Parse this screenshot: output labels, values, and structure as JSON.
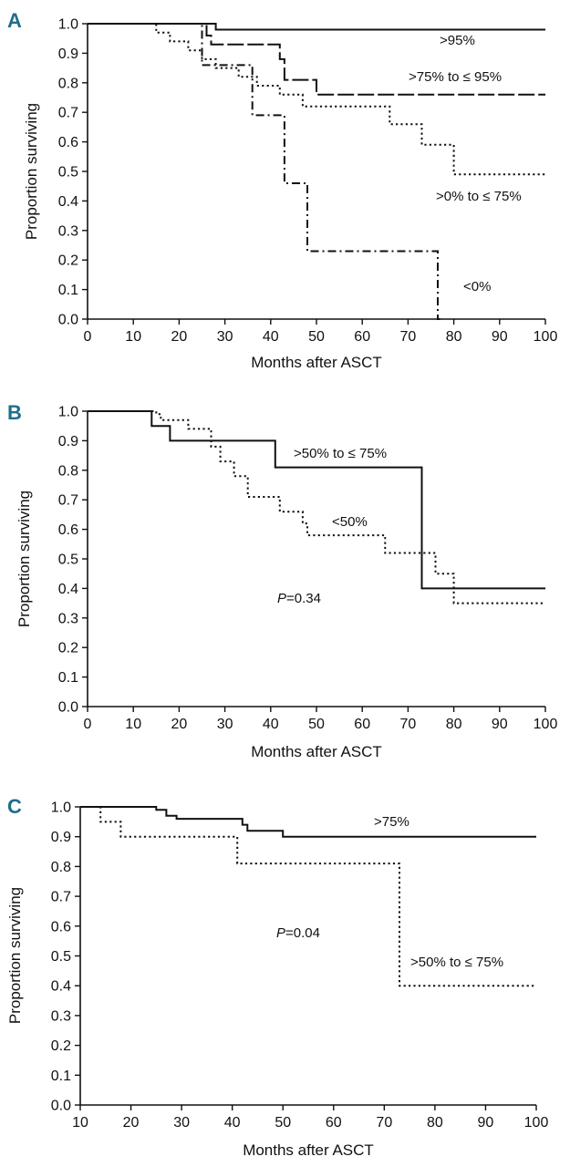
{
  "chart_data": [
    {
      "panel_label": "A",
      "type": "line",
      "subtype": "kaplan-meier",
      "xlabel": "Months after ASCT",
      "ylabel": "Proportion surviving",
      "xlim": [
        0,
        100
      ],
      "ylim": [
        0,
        1
      ],
      "xticks": [
        "0",
        "10",
        "20",
        "30",
        "40",
        "50",
        "60",
        "70",
        "80",
        "90",
        "100"
      ],
      "yticks": [
        "0.0",
        "0.1",
        "0.2",
        "0.3",
        "0.4",
        "0.5",
        "0.6",
        "0.7",
        "0.8",
        "0.9",
        "1.0"
      ],
      "p_value": null,
      "series": [
        {
          "name": ">95%",
          "style": "solid",
          "x": [
            0,
            28,
            100
          ],
          "y": [
            1.0,
            0.98,
            0.98
          ]
        },
        {
          "name": ">75% to ≤ 95%",
          "style": "longdash",
          "x": [
            0,
            26,
            27,
            42,
            43,
            50,
            100
          ],
          "y": [
            1.0,
            0.96,
            0.93,
            0.88,
            0.81,
            0.76,
            0.76
          ]
        },
        {
          "name": ">0% to ≤ 75%",
          "style": "dotted",
          "x": [
            0,
            15,
            18,
            22,
            25,
            28,
            33,
            37,
            42,
            47,
            66,
            73,
            80,
            100
          ],
          "y": [
            1.0,
            0.97,
            0.94,
            0.91,
            0.88,
            0.85,
            0.82,
            0.79,
            0.76,
            0.72,
            0.66,
            0.59,
            0.49,
            0.49
          ]
        },
        {
          "name": "<0%",
          "style": "dashdot",
          "x": [
            0,
            25,
            36,
            43,
            48,
            76.5,
            77
          ],
          "y": [
            1.0,
            0.86,
            0.69,
            0.46,
            0.23,
            0.0,
            0.0
          ]
        }
      ],
      "annotations": [
        ">95%",
        ">75% to ≤ 95%",
        ">0% to ≤ 75%",
        "<0%"
      ]
    },
    {
      "panel_label": "B",
      "type": "line",
      "subtype": "kaplan-meier",
      "xlabel": "Months after ASCT",
      "ylabel": "Proportion surviving",
      "xlim": [
        0,
        100
      ],
      "ylim": [
        0,
        1
      ],
      "xticks": [
        "0",
        "10",
        "20",
        "30",
        "40",
        "50",
        "60",
        "70",
        "80",
        "90",
        "100"
      ],
      "yticks": [
        "0.0",
        "0.1",
        "0.2",
        "0.3",
        "0.4",
        "0.5",
        "0.6",
        "0.7",
        "0.8",
        "0.9",
        "1.0"
      ],
      "p_value": "=0.34",
      "series": [
        {
          "name": ">50% to ≤ 75%",
          "style": "solid",
          "x": [
            0,
            14,
            18,
            41,
            73,
            100
          ],
          "y": [
            1.0,
            0.95,
            0.9,
            0.81,
            0.4,
            0.4
          ]
        },
        {
          "name": "<50%",
          "style": "dotted",
          "x": [
            0,
            15,
            16,
            22,
            27,
            29,
            32,
            35,
            42,
            47,
            48,
            65,
            76,
            80,
            100
          ],
          "y": [
            1.0,
            0.99,
            0.97,
            0.94,
            0.88,
            0.83,
            0.78,
            0.71,
            0.66,
            0.62,
            0.58,
            0.52,
            0.45,
            0.35,
            0.35
          ]
        }
      ],
      "annotations": [
        ">50% to ≤ 75%",
        "<50%"
      ]
    },
    {
      "panel_label": "C",
      "type": "line",
      "subtype": "kaplan-meier",
      "xlabel": "Months after ASCT",
      "ylabel": "Proportion surviving",
      "xlim": [
        10,
        100
      ],
      "ylim": [
        0,
        1
      ],
      "xticks": [
        "10",
        "20",
        "30",
        "40",
        "50",
        "60",
        "70",
        "80",
        "90",
        "100"
      ],
      "yticks": [
        "0.0",
        "0.1",
        "0.2",
        "0.3",
        "0.4",
        "0.5",
        "0.6",
        "0.7",
        "0.8",
        "0.9",
        "1.0"
      ],
      "p_value": "=0.04",
      "series": [
        {
          "name": ">75%",
          "style": "solid",
          "x": [
            10,
            25,
            27,
            29,
            42,
            43,
            50,
            100
          ],
          "y": [
            1.0,
            0.99,
            0.97,
            0.96,
            0.94,
            0.92,
            0.9,
            0.9
          ]
        },
        {
          "name": ">50% to ≤ 75%",
          "style": "dotted",
          "x": [
            10,
            14,
            18,
            41,
            73,
            100
          ],
          "y": [
            1.0,
            0.95,
            0.9,
            0.81,
            0.4,
            0.4
          ]
        }
      ],
      "annotations": [
        ">75%",
        ">50% to ≤ 75%"
      ]
    }
  ]
}
